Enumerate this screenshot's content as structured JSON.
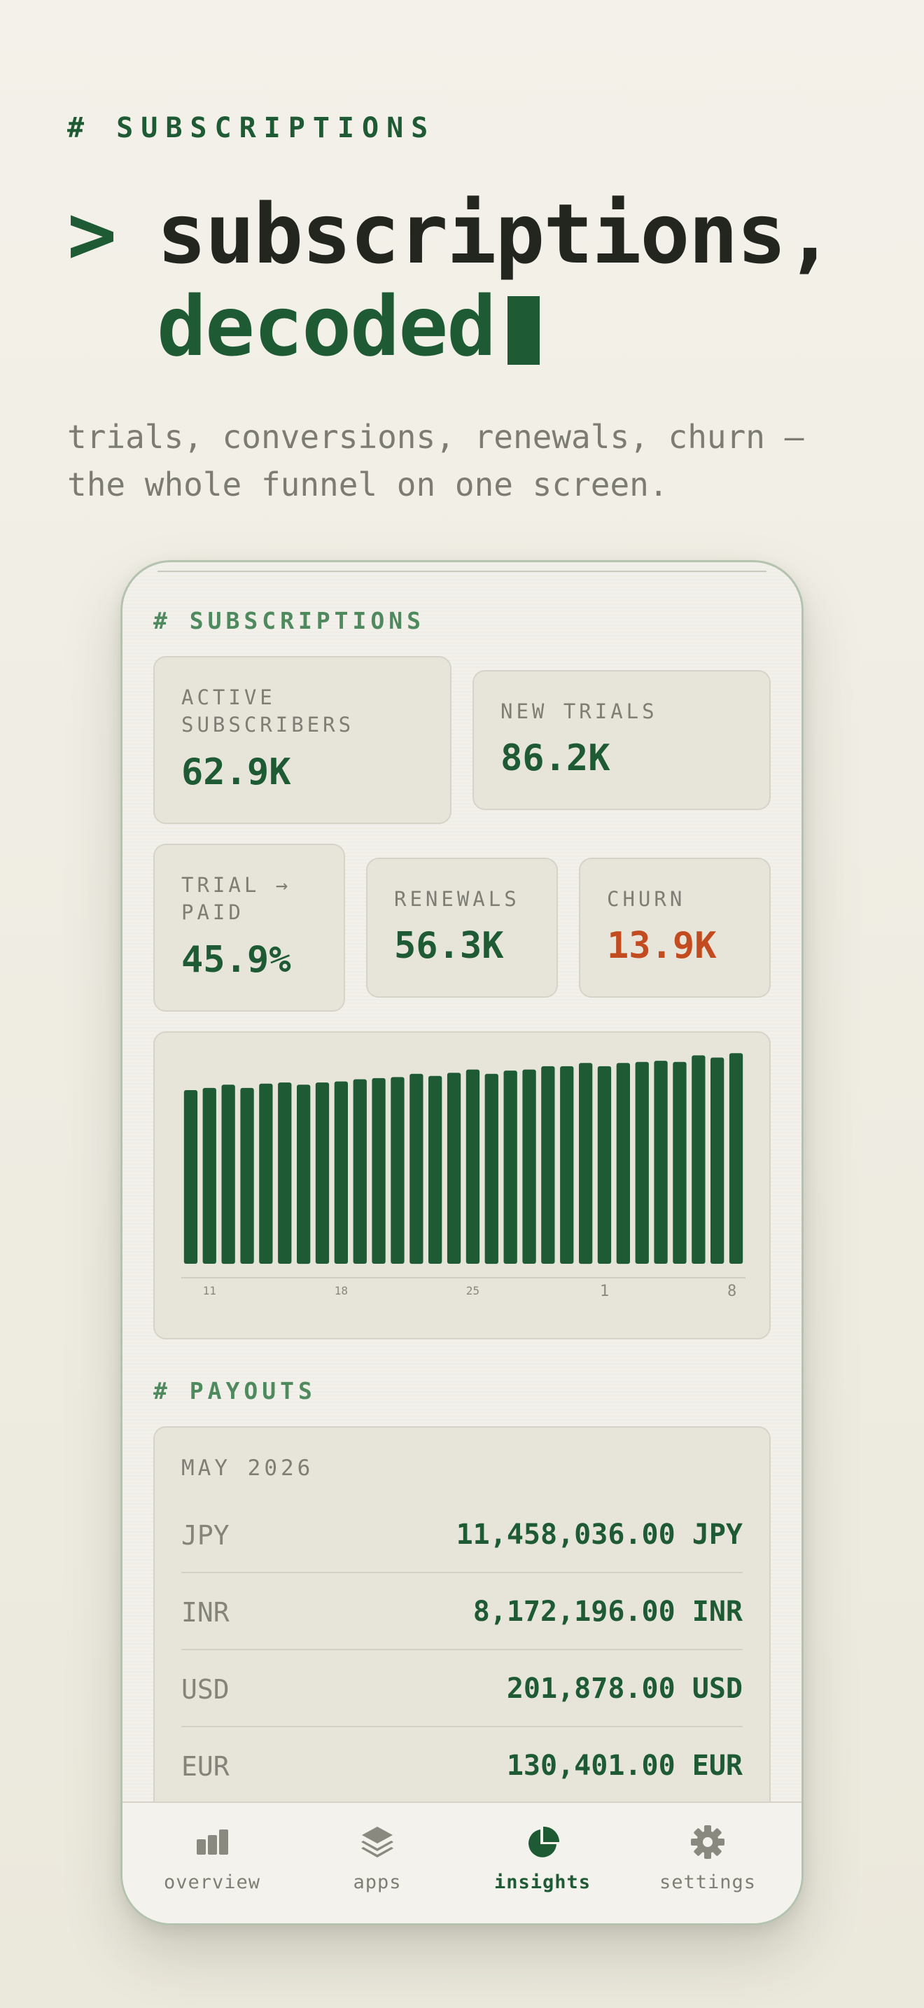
{
  "hero": {
    "kicker": "# SUBSCRIPTIONS",
    "prompt": ">",
    "title_line1": "subscriptions,",
    "title_line2": "decoded",
    "subtitle": "trials, conversions, renewals, churn — the whole funnel on one screen."
  },
  "app": {
    "section_label": "# SUBSCRIPTIONS",
    "stats": [
      {
        "label": "ACTIVE SUBSCRIBERS",
        "value": "62.9K"
      },
      {
        "label": "NEW TRIALS",
        "value": "86.2K"
      },
      {
        "label": "TRIAL → PAID",
        "value": "45.9%"
      },
      {
        "label": "RENEWALS",
        "value": "56.3K"
      },
      {
        "label": "CHURN",
        "value": "13.9K"
      }
    ],
    "payouts_label": "# PAYOUTS",
    "payouts": {
      "month": "MAY 2026",
      "rows": [
        {
          "currency": "JPY",
          "amount": "11,458,036.00 JPY"
        },
        {
          "currency": "INR",
          "amount": "8,172,196.00 INR"
        },
        {
          "currency": "USD",
          "amount": "201,878.00 USD"
        },
        {
          "currency": "EUR",
          "amount": "130,401.00 EUR"
        }
      ]
    },
    "tabs": [
      {
        "label": "overview",
        "icon": "bar-chart-icon",
        "active": false
      },
      {
        "label": "apps",
        "icon": "layers-icon",
        "active": false
      },
      {
        "label": "insights",
        "icon": "pie-chart-icon",
        "active": true
      },
      {
        "label": "settings",
        "icon": "gear-icon",
        "active": false
      }
    ]
  },
  "chart_data": {
    "type": "bar",
    "categories": [
      "",
      "",
      "",
      "",
      "",
      "",
      "",
      "",
      "",
      "",
      "",
      "",
      "",
      "",
      "",
      "",
      "",
      "",
      "",
      "",
      "",
      "",
      "",
      "",
      "",
      "",
      "",
      "",
      "",
      ""
    ],
    "tick_labels": [
      {
        "index": 1,
        "text": "11"
      },
      {
        "index": 8,
        "text": "18"
      },
      {
        "index": 15,
        "text": "25"
      },
      {
        "index": 22,
        "text": "1"
      },
      {
        "index": 29,
        "text": "8"
      }
    ],
    "values": [
      80,
      81,
      82.5,
      81,
      83,
      83.5,
      82.5,
      83.5,
      84,
      85,
      85.5,
      86,
      87.5,
      86.5,
      88,
      89.5,
      87.5,
      89,
      89.5,
      91,
      91,
      92.5,
      91,
      92.5,
      93,
      93.5,
      93,
      96,
      95,
      97
    ],
    "ylim": [
      0,
      100
    ],
    "color": "#1e5a34"
  },
  "colors": {
    "accent": "#1e5a34",
    "warn": "#c24c1f",
    "muted": "#7f7e75"
  }
}
